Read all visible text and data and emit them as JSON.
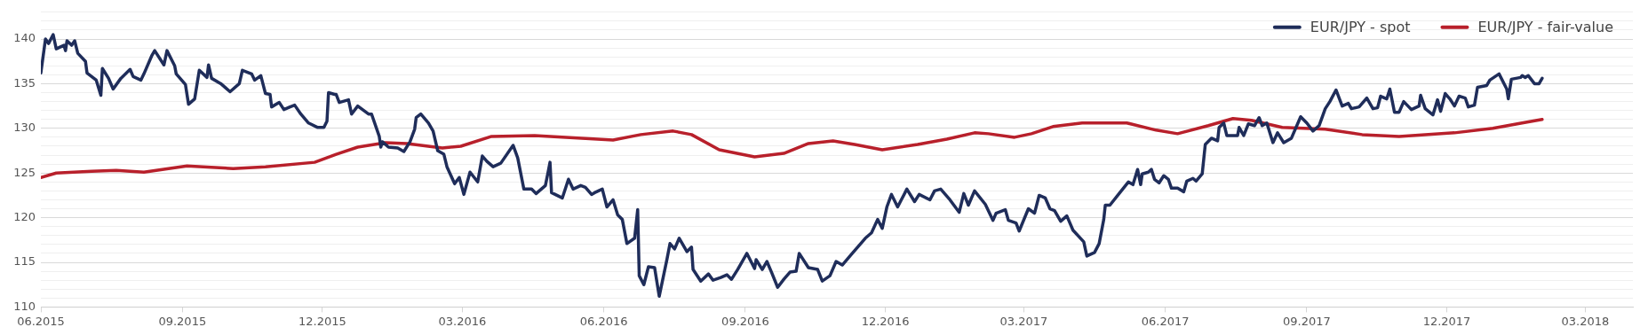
{
  "chart_data": {
    "type": "line",
    "xlim": [
      "2015-06-01",
      "2018-04-01"
    ],
    "xticks": [
      {
        "value": "2015-06-01",
        "label": "06.2015"
      },
      {
        "value": "2015-09-01",
        "label": "09.2015"
      },
      {
        "value": "2015-12-01",
        "label": "12.2015"
      },
      {
        "value": "2016-03-01",
        "label": "03.2016"
      },
      {
        "value": "2016-06-01",
        "label": "06.2016"
      },
      {
        "value": "2016-09-01",
        "label": "09.2016"
      },
      {
        "value": "2016-12-01",
        "label": "12.2016"
      },
      {
        "value": "2017-03-01",
        "label": "03.2017"
      },
      {
        "value": "2017-06-01",
        "label": "06.2017"
      },
      {
        "value": "2017-09-01",
        "label": "09.2017"
      },
      {
        "value": "2017-12-01",
        "label": "12.2017"
      },
      {
        "value": "2018-03-01",
        "label": "03.2018"
      }
    ],
    "ylim": [
      110,
      143
    ],
    "yticks": [
      110,
      {
        "value": 111,
        "label": null
      },
      {
        "value": 112,
        "label": null
      },
      {
        "value": 113,
        "label": null
      },
      {
        "value": 114,
        "label": null
      },
      115,
      {
        "value": 116,
        "label": null
      },
      {
        "value": 117,
        "label": null
      },
      {
        "value": 118,
        "label": null
      },
      {
        "value": 119,
        "label": null
      },
      120,
      {
        "value": 121,
        "label": null
      },
      {
        "value": 122,
        "label": null
      },
      {
        "value": 123,
        "label": null
      },
      {
        "value": 124,
        "label": null
      },
      125,
      {
        "value": 126,
        "label": null
      },
      {
        "value": 127,
        "label": null
      },
      {
        "value": 128,
        "label": null
      },
      {
        "value": 129,
        "label": null
      },
      130,
      {
        "value": 131,
        "label": null
      },
      {
        "value": 132,
        "label": null
      },
      {
        "value": 133,
        "label": null
      },
      {
        "value": 134,
        "label": null
      },
      135,
      {
        "value": 136,
        "label": null
      },
      {
        "value": 137,
        "label": null
      },
      {
        "value": 138,
        "label": null
      },
      {
        "value": 139,
        "label": null
      },
      140,
      {
        "value": 141,
        "label": null
      },
      {
        "value": 142,
        "label": null
      },
      {
        "value": 143,
        "label": null
      }
    ],
    "grid": "y",
    "legend": "top right",
    "marker": "none",
    "line_style": "solid",
    "series": [
      {
        "name": "EUR/JPY - spot",
        "color": "#1f2d5a",
        "x": [
          "2015-06-01",
          "2015-06-04",
          "2015-06-06",
          "2015-06-09",
          "2015-06-11",
          "2015-06-16",
          "2015-06-17",
          "2015-06-18",
          "2015-06-21",
          "2015-06-23",
          "2015-06-25",
          "2015-06-30",
          "2015-07-01",
          "2015-07-07",
          "2015-07-10",
          "2015-07-11",
          "2015-07-15",
          "2015-07-18",
          "2015-07-23",
          "2015-07-29",
          "2015-07-31",
          "2015-08-05",
          "2015-08-07",
          "2015-08-12",
          "2015-08-14",
          "2015-08-20",
          "2015-08-22",
          "2015-08-27",
          "2015-08-28",
          "2015-09-03",
          "2015-09-05",
          "2015-09-09",
          "2015-09-12",
          "2015-09-17",
          "2015-09-18",
          "2015-09-20",
          "2015-09-26",
          "2015-10-02",
          "2015-10-08",
          "2015-10-10",
          "2015-10-16",
          "2015-10-18",
          "2015-10-22",
          "2015-10-25",
          "2015-10-28",
          "2015-10-29",
          "2015-11-03",
          "2015-11-06",
          "2015-11-10",
          "2015-11-13",
          "2015-11-17",
          "2015-11-22",
          "2015-11-28",
          "2015-12-02",
          "2015-12-04",
          "2015-12-05",
          "2015-12-09",
          "2015-12-10",
          "2015-12-12",
          "2015-12-18",
          "2015-12-20",
          "2015-12-24",
          "2015-12-31",
          "2016-01-02",
          "2016-01-07",
          "2016-01-08",
          "2016-01-09",
          "2016-01-13",
          "2016-01-19",
          "2016-01-23",
          "2016-01-27",
          "2016-01-30",
          "2016-01-31",
          "2016-02-03",
          "2016-02-08",
          "2016-02-11",
          "2016-02-14",
          "2016-02-18",
          "2016-02-20",
          "2016-02-25",
          "2016-02-28",
          "2016-03-02",
          "2016-03-06",
          "2016-03-11",
          "2016-03-14",
          "2016-03-17",
          "2016-03-21",
          "2016-03-26",
          "2016-04-03",
          "2016-04-06",
          "2016-04-10",
          "2016-04-15",
          "2016-04-18",
          "2016-04-24",
          "2016-04-26",
          "2016-04-27",
          "2016-04-28",
          "2016-05-05",
          "2016-05-09",
          "2016-05-12",
          "2016-05-17",
          "2016-05-20",
          "2016-05-24",
          "2016-05-26",
          "2016-05-31",
          "2016-06-03",
          "2016-06-07",
          "2016-06-10",
          "2016-06-13",
          "2016-06-16",
          "2016-06-21",
          "2016-06-23",
          "2016-06-24",
          "2016-06-27",
          "2016-06-30",
          "2016-07-04",
          "2016-07-07",
          "2016-07-12",
          "2016-07-14",
          "2016-07-17",
          "2016-07-20",
          "2016-07-25",
          "2016-07-28",
          "2016-07-29",
          "2016-08-03",
          "2016-08-08",
          "2016-08-11",
          "2016-08-16",
          "2016-08-20",
          "2016-08-23",
          "2016-08-27",
          "2016-09-02",
          "2016-09-07",
          "2016-09-08",
          "2016-09-12",
          "2016-09-15",
          "2016-09-18",
          "2016-09-22",
          "2016-09-26",
          "2016-09-30",
          "2016-10-04",
          "2016-10-06",
          "2016-10-12",
          "2016-10-18",
          "2016-10-21",
          "2016-10-26",
          "2016-10-30",
          "2016-11-03",
          "2016-11-09",
          "2016-11-12",
          "2016-11-18",
          "2016-11-22",
          "2016-11-26",
          "2016-11-29",
          "2016-12-02",
          "2016-12-05",
          "2016-12-09",
          "2016-12-15",
          "2016-12-20",
          "2016-12-23",
          "2016-12-30",
          "2017-01-02",
          "2017-01-06",
          "2017-01-12",
          "2017-01-18",
          "2017-01-21",
          "2017-01-24",
          "2017-01-28",
          "2017-02-04",
          "2017-02-09",
          "2017-02-11",
          "2017-02-17",
          "2017-02-19",
          "2017-02-24",
          "2017-02-26",
          "2017-03-04",
          "2017-03-08",
          "2017-03-11",
          "2017-03-15",
          "2017-03-18",
          "2017-03-21",
          "2017-03-25",
          "2017-03-29",
          "2017-04-02",
          "2017-04-09",
          "2017-04-11",
          "2017-04-16",
          "2017-04-19",
          "2017-04-22",
          "2017-04-23",
          "2017-04-26",
          "2017-05-02",
          "2017-05-08",
          "2017-05-11",
          "2017-05-14",
          "2017-05-16",
          "2017-05-17",
          "2017-05-21",
          "2017-05-23",
          "2017-05-25",
          "2017-05-28",
          "2017-05-31",
          "2017-06-03",
          "2017-06-05",
          "2017-06-09",
          "2017-06-13",
          "2017-06-15",
          "2017-06-19",
          "2017-06-21",
          "2017-06-25",
          "2017-06-27",
          "2017-07-01",
          "2017-07-05",
          "2017-07-06",
          "2017-07-09",
          "2017-07-11",
          "2017-07-18",
          "2017-07-19",
          "2017-07-22",
          "2017-07-25",
          "2017-07-29",
          "2017-08-01",
          "2017-08-03",
          "2017-08-06",
          "2017-08-10",
          "2017-08-13",
          "2017-08-17",
          "2017-08-22",
          "2017-08-28",
          "2017-09-01",
          "2017-09-05",
          "2017-09-09",
          "2017-09-13",
          "2017-09-16",
          "2017-09-20",
          "2017-09-24",
          "2017-09-28",
          "2017-09-30",
          "2017-10-05",
          "2017-10-10",
          "2017-10-14",
          "2017-10-17",
          "2017-10-19",
          "2017-10-23",
          "2017-10-25",
          "2017-10-28",
          "2017-10-31",
          "2017-11-03",
          "2017-11-08",
          "2017-11-13",
          "2017-11-14",
          "2017-11-17",
          "2017-11-22",
          "2017-11-25",
          "2017-11-27",
          "2017-11-30",
          "2017-12-03",
          "2017-12-06",
          "2017-12-09",
          "2017-12-13",
          "2017-12-15",
          "2017-12-19",
          "2017-12-21",
          "2017-12-27",
          "2017-12-29",
          "2018-01-04",
          "2018-01-09",
          "2018-01-10",
          "2018-01-12",
          "2018-01-18",
          "2018-01-19",
          "2018-01-21",
          "2018-01-23",
          "2018-01-27",
          "2018-01-30",
          "2018-02-01"
        ],
        "values": [
          136.2,
          140.0,
          139.5,
          140.5,
          138.9,
          139.3,
          138.7,
          139.8,
          139.3,
          139.8,
          138.4,
          137.5,
          136.2,
          135.4,
          133.7,
          136.7,
          135.6,
          134.4,
          135.6,
          136.6,
          135.8,
          135.4,
          136.1,
          138.1,
          138.7,
          137.1,
          138.7,
          137.0,
          136.1,
          134.9,
          132.7,
          133.3,
          136.5,
          135.7,
          137.1,
          135.6,
          135.0,
          134.1,
          135.0,
          136.5,
          136.1,
          135.4,
          135.9,
          133.9,
          133.8,
          132.4,
          132.9,
          132.1,
          132.4,
          132.6,
          131.6,
          130.6,
          130.1,
          130.1,
          130.8,
          134.0,
          133.8,
          133.8,
          132.9,
          133.2,
          131.6,
          132.5,
          131.6,
          131.6,
          129.1,
          127.9,
          128.5,
          127.9,
          127.8,
          127.4,
          128.5,
          129.9,
          131.2,
          131.6,
          130.6,
          129.7,
          127.5,
          127.1,
          125.7,
          123.8,
          124.5,
          122.6,
          125.1,
          124.0,
          126.9,
          126.3,
          125.7,
          126.1,
          128.1,
          126.7,
          123.2,
          123.2,
          122.7,
          123.6,
          125.3,
          126.2,
          122.8,
          122.2,
          124.3,
          123.2,
          123.6,
          123.4,
          122.6,
          122.8,
          123.2,
          121.2,
          122.0,
          120.3,
          119.8,
          117.1,
          117.7,
          120.9,
          113.5,
          112.5,
          114.5,
          114.4,
          111.2,
          115.3,
          117.1,
          116.5,
          117.7,
          116.2,
          116.7,
          114.2,
          112.9,
          113.7,
          113.0,
          113.3,
          113.6,
          113.1,
          114.2,
          116.0,
          114.3,
          115.3,
          114.2,
          115.1,
          113.9,
          112.2,
          113.1,
          113.9,
          114.0,
          116.0,
          114.4,
          114.2,
          112.9,
          113.5,
          115.1,
          114.7,
          115.9,
          116.5,
          117.7,
          118.3,
          119.8,
          118.8,
          121.2,
          122.6,
          121.2,
          123.2,
          121.8,
          122.6,
          122.0,
          123.0,
          123.2,
          122.0,
          120.6,
          122.7,
          121.4,
          123.0,
          121.5,
          119.7,
          120.5,
          120.9,
          119.7,
          119.4,
          118.5,
          121.0,
          120.5,
          122.5,
          122.2,
          121.0,
          120.8,
          119.6,
          120.2,
          118.6,
          117.3,
          115.7,
          116.1,
          117.1,
          119.8,
          121.4,
          121.4,
          122.7,
          124.0,
          123.7,
          125.4,
          123.7,
          124.9,
          125.1,
          125.4,
          124.3,
          123.9,
          124.7,
          124.3,
          123.3,
          123.3,
          122.9,
          124.1,
          124.4,
          124.1,
          124.9,
          128.2,
          128.9,
          128.6,
          130.1,
          130.6,
          129.2,
          129.2,
          130.1,
          129.2,
          130.5,
          130.3,
          131.2,
          130.3,
          130.6,
          128.4,
          129.5,
          128.4,
          128.9,
          131.3,
          130.6,
          129.7,
          130.3,
          132.2,
          133.0,
          134.3,
          132.5,
          132.8,
          132.2,
          132.4,
          133.4,
          132.2,
          132.3,
          133.6,
          133.3,
          134.4,
          131.8,
          131.8,
          133.0,
          132.1,
          132.5,
          133.7,
          132.2,
          131.5,
          133.2,
          131.9,
          133.9,
          133.3,
          132.5,
          133.6,
          133.4,
          132.4,
          132.6,
          134.6,
          134.8,
          135.4,
          136.1,
          134.4,
          133.3,
          135.5,
          135.7,
          135.9,
          135.7,
          135.9,
          135.0,
          135.0,
          135.6
        ]
      },
      {
        "name": "EUR/JPY - fair-value",
        "color": "#b8202b",
        "x": [
          "2015-06-01",
          "2015-06-11",
          "2015-07-04",
          "2015-07-20",
          "2015-08-07",
          "2015-09-04",
          "2015-10-04",
          "2015-10-25",
          "2015-11-26",
          "2015-12-10",
          "2015-12-24",
          "2016-01-11",
          "2016-01-25",
          "2016-02-17",
          "2016-02-29",
          "2016-03-20",
          "2016-04-17",
          "2016-06-07",
          "2016-06-25",
          "2016-07-16",
          "2016-07-28",
          "2016-08-15",
          "2016-09-07",
          "2016-09-26",
          "2016-10-12",
          "2016-10-28",
          "2016-11-11",
          "2016-11-29",
          "2016-12-22",
          "2017-01-10",
          "2017-01-28",
          "2017-02-06",
          "2017-02-23",
          "2017-03-06",
          "2017-03-20",
          "2017-04-08",
          "2017-04-22",
          "2017-05-07",
          "2017-05-26",
          "2017-06-09",
          "2017-06-29",
          "2017-07-15",
          "2017-07-27",
          "2017-08-16",
          "2017-09-13",
          "2017-10-07",
          "2017-10-31",
          "2017-12-06",
          "2017-12-31",
          "2018-01-19",
          "2018-02-01"
        ],
        "values": [
          124.5,
          125.0,
          125.2,
          125.3,
          125.1,
          125.8,
          125.5,
          125.7,
          126.2,
          127.1,
          127.9,
          128.4,
          128.3,
          127.8,
          128.0,
          129.1,
          129.2,
          128.7,
          129.3,
          129.7,
          129.3,
          127.6,
          126.8,
          127.2,
          128.3,
          128.6,
          128.2,
          127.6,
          128.2,
          128.8,
          129.5,
          129.4,
          129.0,
          129.4,
          130.2,
          130.6,
          130.6,
          130.6,
          129.8,
          129.4,
          130.3,
          131.1,
          130.9,
          130.1,
          129.9,
          129.3,
          129.1,
          129.5,
          130.0,
          130.6,
          131.0
        ]
      }
    ]
  }
}
